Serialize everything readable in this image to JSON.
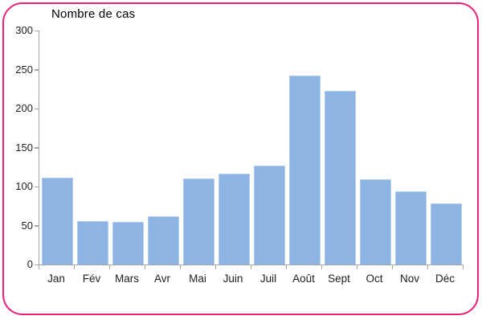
{
  "frame": {
    "border_color": "#EC2077",
    "background": "#FFFFFF"
  },
  "chart_data": {
    "type": "bar",
    "title": "Nombre de cas",
    "xlabel": "",
    "ylabel": "",
    "categories": [
      "Jan",
      "Fév",
      "Mars",
      "Avr",
      "Mai",
      "Juin",
      "Juil",
      "Août",
      "Sept",
      "Oct",
      "Nov",
      "Déc"
    ],
    "values": [
      111,
      56,
      55,
      62,
      110,
      116,
      127,
      242,
      223,
      109,
      94,
      78
    ],
    "ylim": [
      0,
      300
    ],
    "yticks": [
      0,
      50,
      100,
      150,
      200,
      250,
      300
    ],
    "grid": false,
    "legend_position": "none",
    "bar_color": "#8DB4E2",
    "bar_border_color": "#B3CDEC",
    "axis_color": "#A6A6A6",
    "text_color": "#1F1F1F"
  }
}
